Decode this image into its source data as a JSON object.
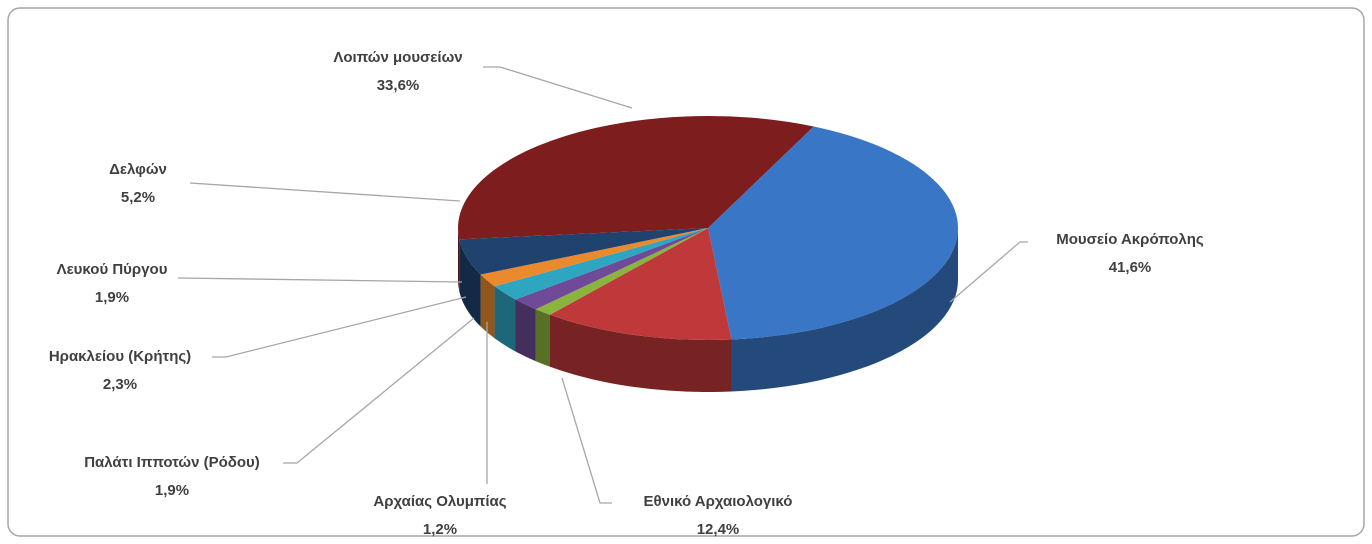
{
  "chart_data": {
    "type": "pie3d",
    "categories": [
      "Μουσείο Ακρόπολης",
      "Εθνικό Αρχαιολογικό",
      "Αρχαίας Ολυμπίας",
      "Παλάτι Ιπποτών (Ρόδου)",
      "Ηρακλείου (Κρήτης)",
      "Λευκού Πύργου",
      "Δελφών",
      "Λοιπών μουσείων"
    ],
    "values": [
      41.6,
      12.4,
      1.2,
      1.9,
      2.3,
      1.9,
      5.2,
      33.6
    ],
    "value_labels": [
      "41,6%",
      "12,4%",
      "1,2%",
      "1,9%",
      "2,3%",
      "1,9%",
      "5,2%",
      "33,6%"
    ],
    "colors": [
      "#3a76c6",
      "#c0393a",
      "#8ab43e",
      "#6e4a98",
      "#2ea6c2",
      "#ea8a2c",
      "#1f426f",
      "#7d1d1d"
    ]
  }
}
